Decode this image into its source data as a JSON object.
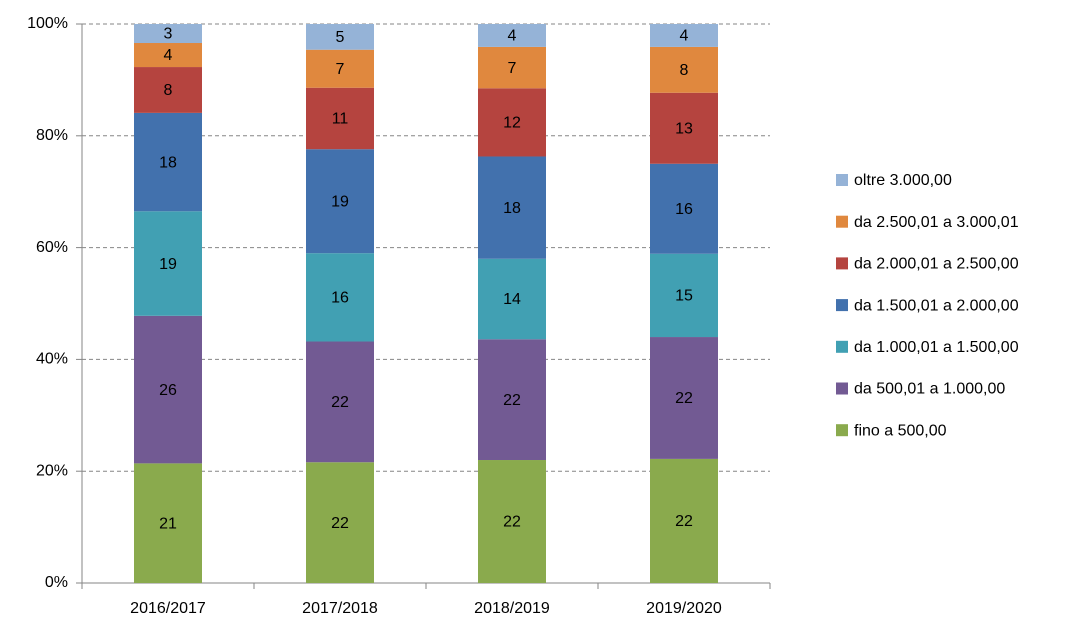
{
  "chart_data": {
    "type": "stacked_bar",
    "categories": [
      "2016/2017",
      "2017/2018",
      "2018/2019",
      "2019/2020"
    ],
    "series": [
      {
        "name": "fino a 500,00",
        "color": "#8aaa4d",
        "values": [
          21.4,
          21.6,
          22.0,
          22.2
        ],
        "value_labels": [
          "21",
          "22",
          "22",
          "22"
        ]
      },
      {
        "name": "da 500,01 a 1.000,00",
        "color": "#725a93",
        "values": [
          26.4,
          21.6,
          21.6,
          21.8
        ],
        "value_labels": [
          "26",
          "22",
          "22",
          "22"
        ]
      },
      {
        "name": "da 1.000,01 a 1.500,00",
        "color": "#41a0b3",
        "values": [
          18.7,
          15.8,
          14.4,
          14.9
        ],
        "value_labels": [
          "19",
          "16",
          "14",
          "15"
        ]
      },
      {
        "name": "da 1.500,01 a 2.000,00",
        "color": "#4271ad",
        "values": [
          17.6,
          18.6,
          18.3,
          16.1
        ],
        "value_labels": [
          "18",
          "19",
          "18",
          "16"
        ]
      },
      {
        "name": "da 2.000,01 a 2.500,00",
        "color": "#b5443f",
        "values": [
          8.2,
          11.0,
          12.2,
          12.7
        ],
        "value_labels": [
          "8",
          "11",
          "12",
          "13"
        ]
      },
      {
        "name": "da 2.500,01 a 3.000,01",
        "color": "#e0883e",
        "values": [
          4.3,
          6.8,
          7.4,
          8.2
        ],
        "value_labels": [
          "4",
          "7",
          "7",
          "8"
        ]
      },
      {
        "name": "oltre 3.000,00",
        "color": "#95b3d7",
        "values": [
          3.4,
          4.6,
          4.1,
          4.1
        ],
        "value_labels": [
          "3",
          "5",
          "4",
          "4"
        ]
      }
    ],
    "ylim": [
      0,
      100
    ],
    "yticks": [
      {
        "value": 0,
        "label": "0%"
      },
      {
        "value": 20,
        "label": "20%"
      },
      {
        "value": 40,
        "label": "40%"
      },
      {
        "value": 60,
        "label": "60%"
      },
      {
        "value": 80,
        "label": "80%"
      },
      {
        "value": 100,
        "label": "100%"
      }
    ],
    "grid": true,
    "legend": "right"
  }
}
